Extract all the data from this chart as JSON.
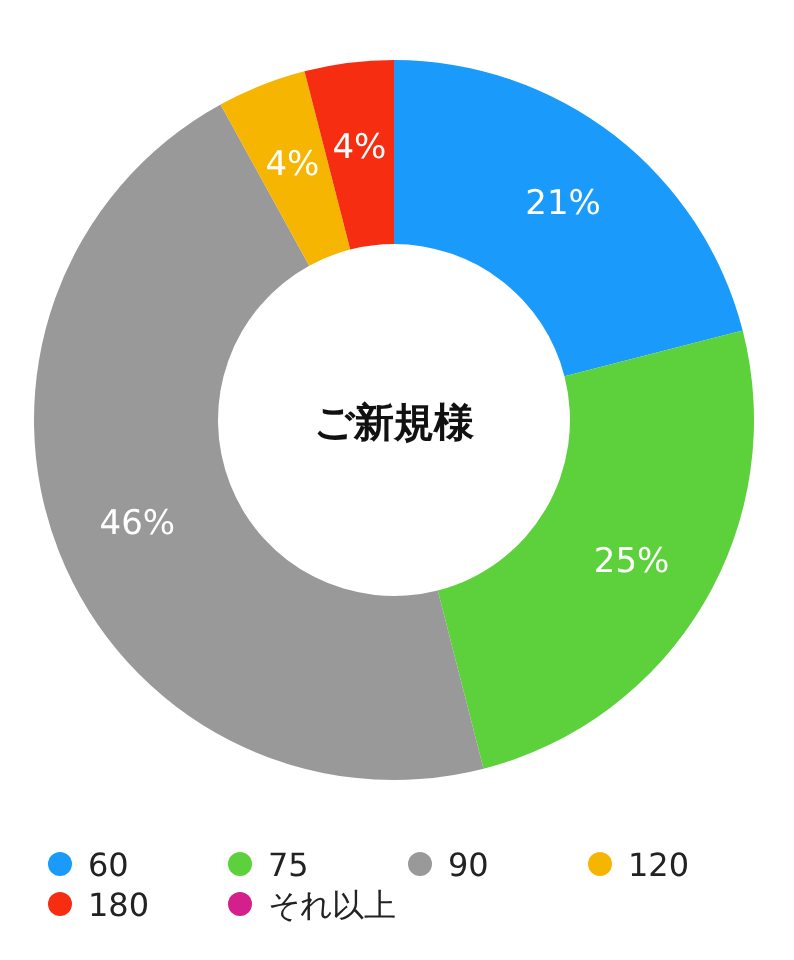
{
  "chart_data": {
    "type": "donut",
    "title": "ご新規様",
    "categories": [
      "60",
      "75",
      "90",
      "120",
      "180",
      "それ以上"
    ],
    "values": [
      21,
      25,
      46,
      4,
      4,
      0
    ],
    "value_labels": [
      "21%",
      "25%",
      "46%",
      "4%",
      "4%",
      null
    ],
    "colors": [
      "#1a9bfc",
      "#5cd13b",
      "#999999",
      "#f6b500",
      "#f62d10",
      "#d3208c"
    ],
    "legend": "bottom"
  }
}
